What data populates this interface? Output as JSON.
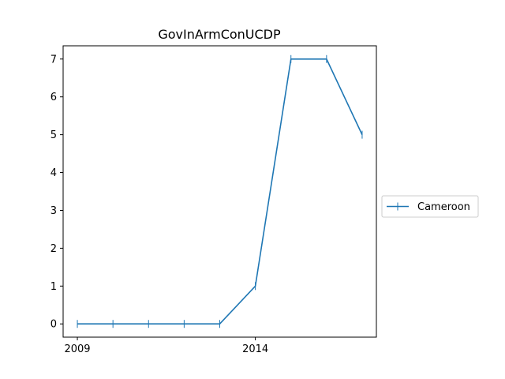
{
  "chart_data": {
    "type": "line",
    "title": "GovInArmConUCDP",
    "xlabel": "",
    "ylabel": "",
    "x": [
      2009,
      2010,
      2011,
      2012,
      2013,
      2014,
      2015,
      2016,
      2017
    ],
    "x_ticks": [
      2009,
      2014
    ],
    "y_ticks": [
      0,
      1,
      2,
      3,
      4,
      5,
      6,
      7
    ],
    "xlim": [
      2008.6,
      2017.4
    ],
    "ylim": [
      -0.35,
      7.35
    ],
    "grid": false,
    "legend_position": "outside-right",
    "series": [
      {
        "name": "Cameroon",
        "values": [
          0,
          0,
          0,
          0,
          0,
          1,
          7,
          7,
          5
        ],
        "color": "#1f77b4",
        "marker": "vertical-tick"
      }
    ]
  }
}
